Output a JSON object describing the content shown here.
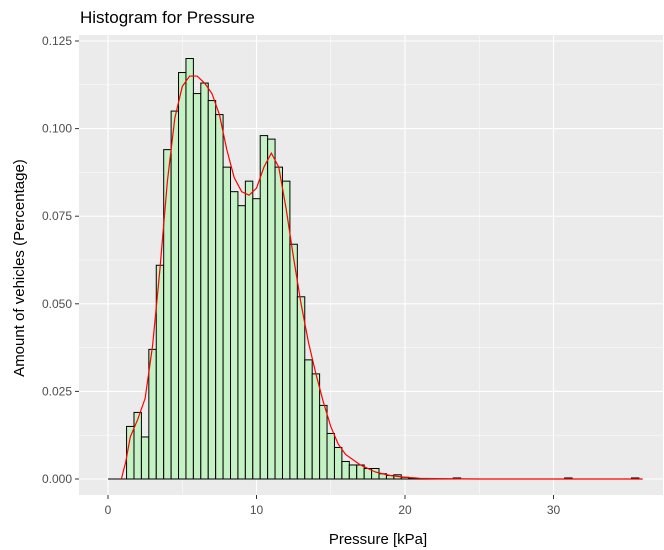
{
  "chart_data": {
    "type": "histogram",
    "title": "Histogram for Pressure",
    "xlabel": "Pressure [kPa]",
    "ylabel": "Amount of vehicles (Percentage)",
    "xlim": [
      0,
      36
    ],
    "ylim": [
      0,
      0.125
    ],
    "x_ticks": [
      0,
      10,
      20,
      30
    ],
    "x_tick_labels": [
      "0",
      "10",
      "20",
      "30"
    ],
    "y_ticks": [
      0,
      0.025,
      0.05,
      0.075,
      0.1,
      0.125
    ],
    "y_tick_labels": [
      "0.000",
      "0.025",
      "0.050",
      "0.075",
      "0.100",
      "0.125"
    ],
    "grid": true,
    "bin_width": 0.5,
    "bins": [
      {
        "x": 1.5,
        "y": 0.015
      },
      {
        "x": 2.0,
        "y": 0.019
      },
      {
        "x": 2.5,
        "y": 0.012
      },
      {
        "x": 3.0,
        "y": 0.037
      },
      {
        "x": 3.5,
        "y": 0.061
      },
      {
        "x": 4.0,
        "y": 0.094
      },
      {
        "x": 4.5,
        "y": 0.105
      },
      {
        "x": 5.0,
        "y": 0.116
      },
      {
        "x": 5.5,
        "y": 0.12
      },
      {
        "x": 6.0,
        "y": 0.11
      },
      {
        "x": 6.5,
        "y": 0.113
      },
      {
        "x": 7.0,
        "y": 0.108
      },
      {
        "x": 7.5,
        "y": 0.104
      },
      {
        "x": 8.0,
        "y": 0.089
      },
      {
        "x": 8.5,
        "y": 0.082
      },
      {
        "x": 9.0,
        "y": 0.078
      },
      {
        "x": 9.5,
        "y": 0.085
      },
      {
        "x": 10.0,
        "y": 0.08
      },
      {
        "x": 10.5,
        "y": 0.098
      },
      {
        "x": 11.0,
        "y": 0.097
      },
      {
        "x": 11.5,
        "y": 0.089
      },
      {
        "x": 12.0,
        "y": 0.085
      },
      {
        "x": 12.5,
        "y": 0.067
      },
      {
        "x": 13.0,
        "y": 0.052
      },
      {
        "x": 13.5,
        "y": 0.034
      },
      {
        "x": 14.0,
        "y": 0.03
      },
      {
        "x": 14.5,
        "y": 0.021
      },
      {
        "x": 15.0,
        "y": 0.013
      },
      {
        "x": 15.5,
        "y": 0.009
      },
      {
        "x": 16.0,
        "y": 0.005
      },
      {
        "x": 16.5,
        "y": 0.004
      },
      {
        "x": 17.0,
        "y": 0.004
      },
      {
        "x": 17.5,
        "y": 0.003
      },
      {
        "x": 18.0,
        "y": 0.003
      },
      {
        "x": 18.5,
        "y": 0.0015
      },
      {
        "x": 19.0,
        "y": 0.001
      },
      {
        "x": 19.5,
        "y": 0.0012
      },
      {
        "x": 20.0,
        "y": 0.0005
      },
      {
        "x": 20.5,
        "y": 0.0003
      },
      {
        "x": 23.5,
        "y": 0.0003
      },
      {
        "x": 31.0,
        "y": 0.0003
      },
      {
        "x": 35.5,
        "y": 0.0003
      }
    ],
    "density_curve": {
      "x": [
        0.9,
        1.2,
        1.5,
        2.0,
        2.5,
        3.0,
        3.5,
        4.0,
        4.5,
        5.0,
        5.5,
        6.0,
        6.5,
        7.0,
        7.5,
        8.0,
        8.5,
        9.0,
        9.5,
        10.0,
        10.5,
        11.0,
        11.5,
        12.0,
        12.5,
        13.0,
        13.5,
        14.0,
        14.5,
        15.0,
        15.5,
        16.0,
        17.0,
        18.0,
        19.0,
        20.0,
        21.0,
        22.0,
        25.0,
        30.0,
        35.0,
        36.0
      ],
      "y": [
        0.0,
        0.005,
        0.012,
        0.017,
        0.023,
        0.038,
        0.06,
        0.085,
        0.103,
        0.112,
        0.115,
        0.115,
        0.113,
        0.11,
        0.104,
        0.094,
        0.086,
        0.082,
        0.081,
        0.083,
        0.089,
        0.093,
        0.089,
        0.077,
        0.063,
        0.05,
        0.039,
        0.03,
        0.022,
        0.015,
        0.01,
        0.007,
        0.004,
        0.002,
        0.001,
        0.0005,
        0.0002,
        0.0001,
        0.0,
        0.0,
        0.0,
        0.0
      ]
    },
    "colors": {
      "bar_fill": "#c4f2c4",
      "bar_stroke": "#000000",
      "density_line": "#ff0000",
      "panel_bg": "#ebebeb",
      "grid_major": "#ffffff"
    }
  }
}
